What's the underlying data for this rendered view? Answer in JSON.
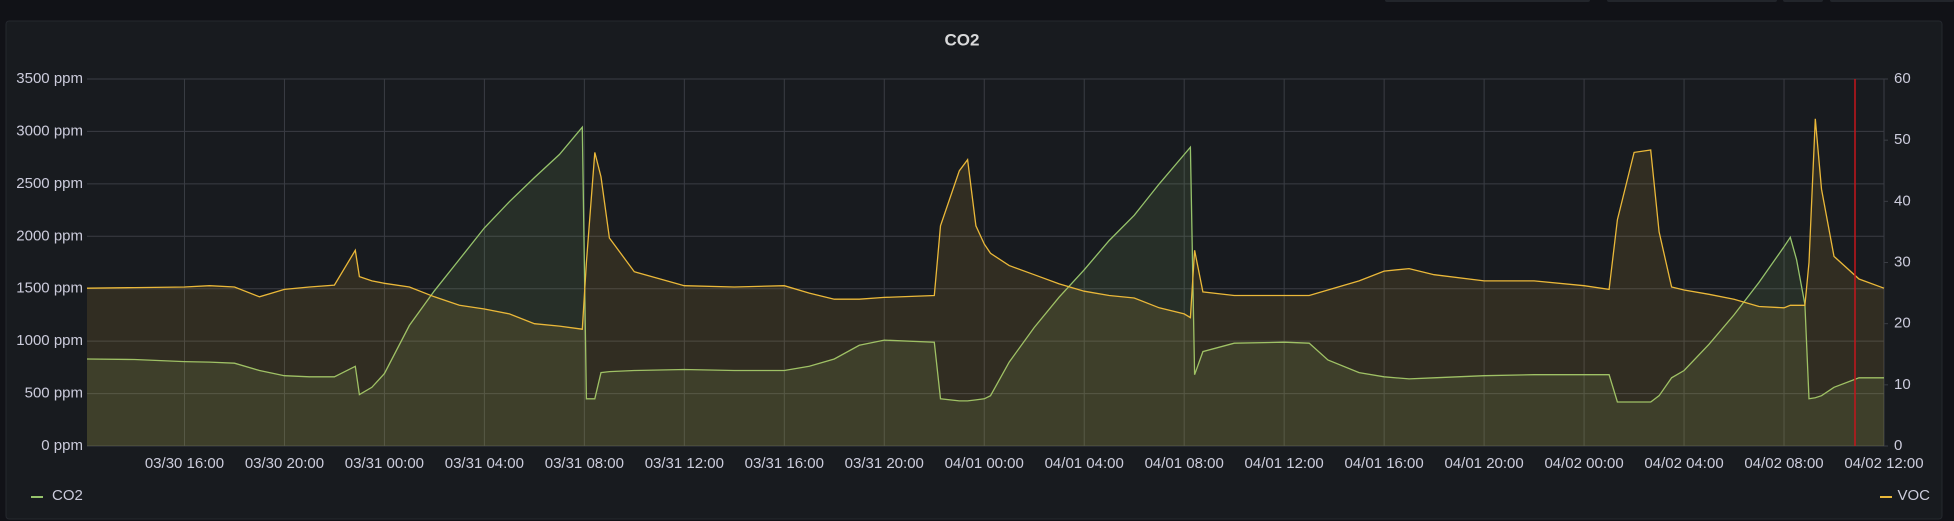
{
  "chart_data": {
    "type": "line",
    "title": "CO2",
    "x": [
      "03/30 12:06",
      "03/30 14:00",
      "03/30 16:00",
      "03/30 17:00",
      "03/30 18:00",
      "03/30 19:00",
      "03/30 20:00",
      "03/30 21:00",
      "03/30 22:00",
      "03/30 22:50",
      "03/30 23:00",
      "03/30 23:30",
      "03/31 00:00",
      "03/31 01:00",
      "03/31 02:00",
      "03/31 03:00",
      "03/31 04:00",
      "03/31 05:00",
      "03/31 06:00",
      "03/31 07:00",
      "03/31 07:55",
      "03/31 08:05",
      "03/31 08:25",
      "03/31 08:40",
      "03/31 09:00",
      "03/31 10:00",
      "03/31 12:00",
      "03/31 14:00",
      "03/31 16:00",
      "03/31 17:00",
      "03/31 18:00",
      "03/31 19:00",
      "03/31 20:00",
      "03/31 22:00",
      "03/31 22:15",
      "03/31 23:00",
      "03/31 23:20",
      "03/31 23:40",
      "04/01 00:00",
      "04/01 00:15",
      "04/01 01:00",
      "04/01 02:00",
      "04/01 03:00",
      "04/01 04:00",
      "04/01 05:00",
      "04/01 06:00",
      "04/01 07:00",
      "04/01 08:00",
      "04/01 08:15",
      "04/01 08:25",
      "04/01 08:45",
      "04/01 10:00",
      "04/01 12:00",
      "04/01 13:00",
      "04/01 13:45",
      "04/01 15:00",
      "04/01 16:00",
      "04/01 17:00",
      "04/01 18:00",
      "04/01 20:00",
      "04/01 22:00",
      "04/02 00:00",
      "04/02 01:00",
      "04/02 01:20",
      "04/02 02:00",
      "04/02 02:40",
      "04/02 03:00",
      "04/02 03:30",
      "04/02 04:00",
      "04/02 05:00",
      "04/02 06:00",
      "04/02 07:00",
      "04/02 08:00",
      "04/02 08:15",
      "04/02 08:30",
      "04/02 08:50",
      "04/02 09:00",
      "04/02 09:15",
      "04/02 09:30",
      "04/02 10:00",
      "04/02 11:00",
      "04/02 12:00"
    ],
    "series": [
      {
        "name": "CO2",
        "color": "#96c36b",
        "values": [
          830,
          825,
          805,
          800,
          790,
          720,
          670,
          660,
          660,
          760,
          490,
          560,
          690,
          1150,
          1480,
          1780,
          2080,
          2330,
          2560,
          2780,
          3040,
          450,
          450,
          700,
          710,
          720,
          730,
          720,
          720,
          760,
          830,
          960,
          1010,
          990,
          450,
          430,
          430,
          440,
          450,
          480,
          800,
          1130,
          1420,
          1680,
          1960,
          2200,
          2500,
          2780,
          2850,
          680,
          900,
          980,
          990,
          980,
          820,
          700,
          660,
          640,
          650,
          670,
          680,
          680,
          680,
          420,
          420,
          420,
          480,
          650,
          720,
          970,
          1250,
          1560,
          1900,
          1990,
          1780,
          1350,
          450,
          460,
          480,
          560,
          650,
          650
        ]
      },
      {
        "name": "VOC",
        "color": "#eab839",
        "axis": "y2",
        "values": [
          25.8,
          25.9,
          26.0,
          26.2,
          26.0,
          24.4,
          25.6,
          26.0,
          26.3,
          32.0,
          27.7,
          27.0,
          26.6,
          26.0,
          24.4,
          23.0,
          22.4,
          21.6,
          20.0,
          19.6,
          19.1,
          30.0,
          48.0,
          44.0,
          34.0,
          28.5,
          26.2,
          26.0,
          26.2,
          25.0,
          24.0,
          24.0,
          24.3,
          24.6,
          36.0,
          45.0,
          46.8,
          36.0,
          33.0,
          31.5,
          29.5,
          28.0,
          26.5,
          25.3,
          24.6,
          24.2,
          22.6,
          21.6,
          21.0,
          32.0,
          25.2,
          24.6,
          24.6,
          24.6,
          25.5,
          27.0,
          28.6,
          29.0,
          28.0,
          27.0,
          27.0,
          26.2,
          25.6,
          37.0,
          48.0,
          48.4,
          35.0,
          26.0,
          25.5,
          24.8,
          24.0,
          22.8,
          22.6,
          23.0,
          23.0,
          23.0,
          30.0,
          53.5,
          42.0,
          31.0,
          27.3,
          25.8
        ]
      }
    ],
    "xlim": [
      "03/30 12:06",
      "04/02 12:00"
    ],
    "xticks": [
      "03/30 16:00",
      "03/30 20:00",
      "03/31 00:00",
      "03/31 04:00",
      "03/31 08:00",
      "03/31 12:00",
      "03/31 16:00",
      "03/31 20:00",
      "04/01 00:00",
      "04/01 04:00",
      "04/01 08:00",
      "04/01 12:00",
      "04/01 16:00",
      "04/01 20:00",
      "04/02 00:00",
      "04/02 04:00",
      "04/02 08:00",
      "04/02 12:00"
    ],
    "ylim": [
      0,
      3500
    ],
    "yticks": [
      {
        "value": 0,
        "label": "0 ppm"
      },
      {
        "value": 500,
        "label": "500 ppm"
      },
      {
        "value": 1000,
        "label": "1000 ppm"
      },
      {
        "value": 1500,
        "label": "1500 ppm"
      },
      {
        "value": 2000,
        "label": "2000 ppm"
      },
      {
        "value": 2500,
        "label": "2500 ppm"
      },
      {
        "value": 3000,
        "label": "3000 ppm"
      },
      {
        "value": 3500,
        "label": "3500 ppm"
      }
    ],
    "y2lim": [
      0,
      60
    ],
    "y2ticks": [
      0,
      10,
      20,
      30,
      40,
      50,
      60
    ],
    "grid": true,
    "area": true
  }
}
